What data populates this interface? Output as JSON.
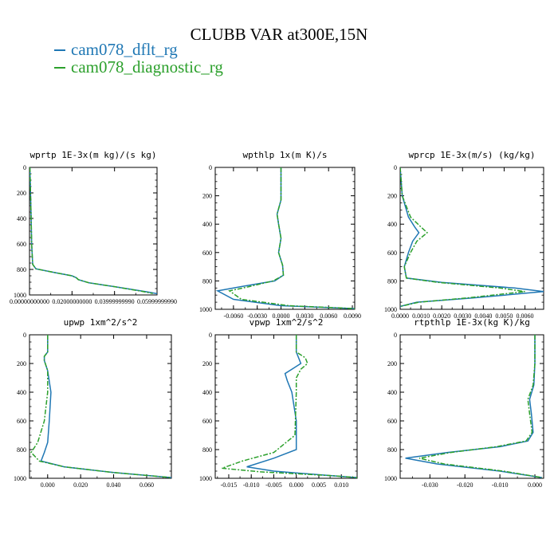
{
  "title": "CLUBB VAR at300E,15N",
  "legend": [
    {
      "name": "cam078_dflt_rg",
      "color": "#1f77b4"
    },
    {
      "name": "cam078_diagnostic_rg",
      "color": "#2ca02c"
    }
  ],
  "chart_data": [
    {
      "type": "line",
      "title": "wprtp  1E-3x(m kg)/(s kg)",
      "xlim": [
        0,
        0.06
      ],
      "ylim": [
        1000,
        0
      ],
      "xticks": [
        0,
        0.02,
        0.04,
        0.06
      ],
      "xtick_labels": [
        "0.00000000000",
        "0.02000000000",
        "0.03999999990",
        "0.05999999990"
      ],
      "yticks": [
        0,
        200,
        400,
        600,
        800,
        1000
      ],
      "series": [
        {
          "name": "cam078_dflt_rg",
          "x": [
            0.0002,
            0.0005,
            0.0008,
            0.001,
            0.0015,
            0.003,
            0.012,
            0.02,
            0.022,
            0.023,
            0.028,
            0.04,
            0.055,
            0.06
          ],
          "y": [
            0,
            200,
            400,
            600,
            760,
            795,
            825,
            850,
            865,
            880,
            905,
            935,
            975,
            990
          ]
        },
        {
          "name": "cam078_diagnostic_rg",
          "x": [
            0.0002,
            0.0005,
            0.0008,
            0.001,
            0.0015,
            0.003,
            0.012,
            0.02,
            0.022,
            0.023,
            0.028,
            0.04,
            0.053,
            0.058
          ],
          "y": [
            0,
            200,
            400,
            600,
            760,
            795,
            825,
            850,
            865,
            880,
            905,
            935,
            972,
            988
          ]
        }
      ]
    },
    {
      "type": "line",
      "title": "wpthlp  1x(m K)/s",
      "xlim": [
        -0.0083,
        0.0093
      ],
      "ylim": [
        1000,
        0
      ],
      "xticks": [
        -0.006,
        -0.003,
        0,
        0.003,
        0.006,
        0.009
      ],
      "xtick_labels": [
        "-0.0060",
        "-0.0030",
        "0.0000",
        "0.0030",
        "0.0060",
        "0.0090"
      ],
      "yticks": [
        0,
        200,
        400,
        600,
        800,
        1000
      ],
      "series": [
        {
          "name": "cam078_dflt_rg",
          "x": [
            0.0,
            0.0,
            0.0,
            -0.0005,
            -0.0003,
            0.0,
            -0.0003,
            0.0002,
            0.0003,
            -0.0008,
            -0.005,
            -0.008,
            -0.006,
            0.0,
            0.0093
          ],
          "y": [
            0,
            100,
            230,
            330,
            400,
            500,
            600,
            690,
            760,
            800,
            840,
            870,
            930,
            975,
            995
          ]
        },
        {
          "name": "cam078_diagnostic_rg",
          "x": [
            0.0,
            0.0,
            0.0,
            -0.0005,
            -0.0003,
            0.0,
            -0.0003,
            0.0002,
            0.0003,
            -0.001,
            -0.004,
            -0.0065,
            -0.005,
            0.001,
            0.0093
          ],
          "y": [
            0,
            100,
            230,
            330,
            400,
            500,
            600,
            690,
            760,
            800,
            840,
            870,
            930,
            975,
            995
          ]
        }
      ]
    },
    {
      "type": "line",
      "title": "wprcp  1E-3x(m/s) (kg/kg)",
      "xlim": [
        0,
        0.0069
      ],
      "ylim": [
        1000,
        0
      ],
      "xticks": [
        0,
        0.001,
        0.002,
        0.003,
        0.004,
        0.005,
        0.006
      ],
      "xtick_labels": [
        "0.0000",
        "0.0010",
        "0.0020",
        "0.0030",
        "0.0040",
        "0.0050",
        "0.0060"
      ],
      "yticks": [
        0,
        200,
        400,
        600,
        800,
        1000
      ],
      "series": [
        {
          "name": "cam078_dflt_rg",
          "x": [
            0,
            0.0001,
            0.0004,
            0.0007,
            0.0009,
            0.0006,
            0.0004,
            0.0002,
            0.0003,
            0.002,
            0.0055,
            0.0069,
            0.0035,
            0.0008,
            0.0
          ],
          "y": [
            0,
            200,
            350,
            420,
            460,
            520,
            600,
            700,
            780,
            810,
            850,
            875,
            920,
            950,
            980
          ]
        },
        {
          "name": "cam078_diagnostic_rg",
          "x": [
            0,
            0.0001,
            0.0005,
            0.001,
            0.0013,
            0.0008,
            0.0005,
            0.0002,
            0.0003,
            0.0018,
            0.0048,
            0.006,
            0.0032,
            0.0009,
            0.0
          ],
          "y": [
            0,
            200,
            350,
            420,
            460,
            520,
            600,
            700,
            780,
            810,
            850,
            875,
            920,
            950,
            980
          ]
        }
      ]
    },
    {
      "type": "line",
      "title": "upwp  1xm^2/s^2",
      "xlim": [
        -0.011,
        0.075
      ],
      "ylim": [
        1000,
        0
      ],
      "xticks": [
        0,
        0.02,
        0.04,
        0.06
      ],
      "xtick_labels": [
        "0.000",
        "0.020",
        "0.040",
        "0.060"
      ],
      "yticks": [
        0,
        200,
        400,
        600,
        800,
        1000
      ],
      "series": [
        {
          "name": "cam078_dflt_rg",
          "x": [
            0,
            0.0,
            -0.002,
            -0.002,
            0.0,
            0.002,
            0.001,
            0.0,
            -0.002,
            -0.004,
            0.01,
            0.04,
            0.075
          ],
          "y": [
            0,
            120,
            150,
            180,
            250,
            400,
            600,
            750,
            820,
            880,
            920,
            960,
            995
          ]
        },
        {
          "name": "cam078_diagnostic_rg",
          "x": [
            0,
            0.0,
            -0.002,
            -0.002,
            0.0,
            0.0,
            -0.002,
            -0.006,
            -0.01,
            -0.005,
            0.01,
            0.04,
            0.075
          ],
          "y": [
            0,
            120,
            150,
            180,
            250,
            400,
            600,
            750,
            820,
            880,
            920,
            960,
            995
          ]
        }
      ]
    },
    {
      "type": "line",
      "title": "vpwp  1xm^2/s^2",
      "xlim": [
        -0.018,
        0.0135
      ],
      "ylim": [
        1000,
        0
      ],
      "xticks": [
        -0.015,
        -0.01,
        -0.005,
        0,
        0.005,
        0.01
      ],
      "xtick_labels": [
        "-0.015",
        "-0.010",
        "-0.005",
        "0.000",
        "0.005",
        "0.010"
      ],
      "yticks": [
        0,
        200,
        400,
        600,
        800,
        1000
      ],
      "series": [
        {
          "name": "cam078_dflt_rg",
          "x": [
            0,
            0.0,
            0.001,
            -0.001,
            -0.0025,
            -0.002,
            -0.001,
            0.0,
            0.0,
            -0.005,
            -0.011,
            -0.005,
            0.007,
            0.0135
          ],
          "y": [
            0,
            120,
            200,
            240,
            270,
            320,
            400,
            600,
            800,
            860,
            920,
            950,
            980,
            995
          ]
        },
        {
          "name": "cam078_diagnostic_rg",
          "x": [
            0,
            0.0,
            0.002,
            0.0025,
            0.001,
            0.0,
            0.0,
            -0.0003,
            -0.005,
            -0.012,
            -0.0165,
            -0.008,
            0.007,
            0.0135
          ],
          "y": [
            0,
            120,
            160,
            200,
            240,
            300,
            400,
            700,
            820,
            880,
            930,
            955,
            980,
            995
          ]
        }
      ]
    },
    {
      "type": "line",
      "title": "rtpthlp  1E-3x(kg K)/kg",
      "xlim": [
        -0.0385,
        0.0025
      ],
      "ylim": [
        1000,
        0
      ],
      "xticks": [
        -0.03,
        -0.02,
        -0.01,
        0
      ],
      "xtick_labels": [
        "-0.030",
        "-0.020",
        "-0.010",
        "0.000"
      ],
      "yticks": [
        0,
        200,
        400,
        600,
        800,
        1000
      ],
      "series": [
        {
          "name": "cam078_dflt_rg",
          "x": [
            0,
            0.0,
            -0.0003,
            -0.0015,
            -0.001,
            -0.0005,
            -0.002,
            -0.01,
            -0.025,
            -0.037,
            -0.028,
            -0.01,
            0.002
          ],
          "y": [
            0,
            200,
            350,
            450,
            550,
            680,
            740,
            780,
            820,
            860,
            900,
            950,
            995
          ]
        },
        {
          "name": "cam078_diagnostic_rg",
          "x": [
            0,
            0.0,
            -0.0005,
            -0.002,
            -0.0015,
            -0.0008,
            -0.0025,
            -0.011,
            -0.024,
            -0.033,
            -0.026,
            -0.009,
            0.002
          ],
          "y": [
            0,
            200,
            350,
            450,
            550,
            680,
            740,
            780,
            820,
            860,
            900,
            950,
            995
          ]
        }
      ]
    }
  ]
}
